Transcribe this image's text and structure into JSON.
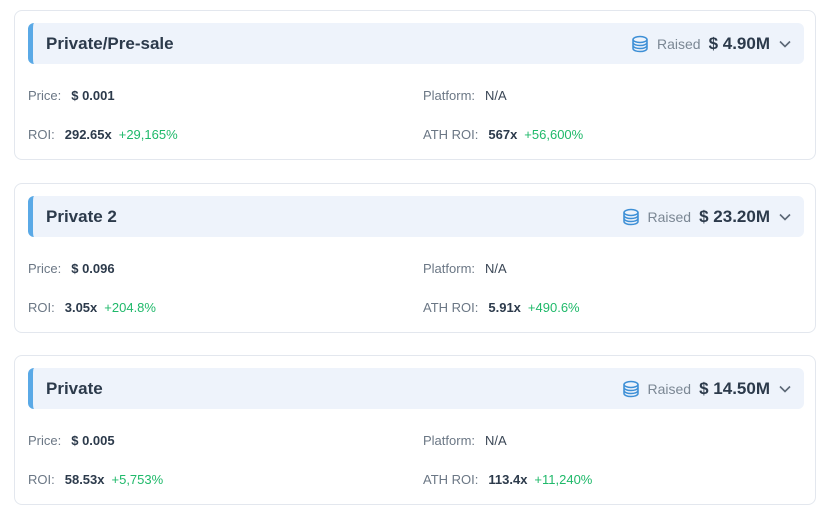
{
  "rounds": [
    {
      "name": "Private/Pre-sale",
      "raised_label": "Raised",
      "raised_value": "$ 4.90M",
      "price_label": "Price:",
      "price": "$ 0.001",
      "platform_label": "Platform:",
      "platform": "N/A",
      "roi_label": "ROI:",
      "roi": "292.65x",
      "roi_pct": "+29,165%",
      "ath_roi_label": "ATH ROI:",
      "ath_roi": "567x",
      "ath_roi_pct": "+56,600%"
    },
    {
      "name": "Private 2",
      "raised_label": "Raised",
      "raised_value": "$ 23.20M",
      "price_label": "Price:",
      "price": "$ 0.096",
      "platform_label": "Platform:",
      "platform": "N/A",
      "roi_label": "ROI:",
      "roi": "3.05x",
      "roi_pct": "+204.8%",
      "ath_roi_label": "ATH ROI:",
      "ath_roi": "5.91x",
      "ath_roi_pct": "+490.6%"
    },
    {
      "name": "Private",
      "raised_label": "Raised",
      "raised_value": "$ 14.50M",
      "price_label": "Price:",
      "price": "$ 0.005",
      "platform_label": "Platform:",
      "platform": "N/A",
      "roi_label": "ROI:",
      "roi": "58.53x",
      "roi_pct": "+5,753%",
      "ath_roi_label": "ATH ROI:",
      "ath_roi": "113.4x",
      "ath_roi_pct": "+11,240%"
    }
  ],
  "icons": {
    "raised": "coins-icon",
    "toggle": "chevron-down-icon"
  },
  "colors": {
    "accent": "#5aa9e6",
    "header_bg": "#eef3fb",
    "positive": "#1fb96a"
  }
}
